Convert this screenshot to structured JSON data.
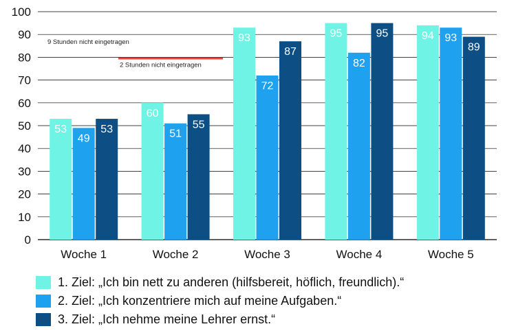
{
  "chart_data": {
    "type": "bar",
    "categories": [
      "Woche 1",
      "Woche 2",
      "Woche 3",
      "Woche 4",
      "Woche 5"
    ],
    "series": [
      {
        "name": "1. Ziel: „Ich bin nett zu anderen (hilfsbereit, höflich, freundlich).“",
        "values": [
          53,
          60,
          93,
          95,
          94
        ],
        "color": "#6ff3e4"
      },
      {
        "name": "2. Ziel: „Ich konzentriere mich auf meine Aufgaben.“",
        "values": [
          49,
          51,
          72,
          82,
          93
        ],
        "color": "#1ea2f0"
      },
      {
        "name": "3. Ziel: „Ich nehme meine Lehrer ernst.“",
        "values": [
          53,
          55,
          87,
          95,
          89
        ],
        "color": "#0d4f85"
      }
    ],
    "ylim": [
      0,
      100
    ],
    "yticks": [
      0,
      10,
      20,
      30,
      40,
      50,
      60,
      70,
      80,
      90,
      100
    ],
    "grid": true,
    "legend": "bottom",
    "annotations": [
      {
        "text": "9 Stunden nicht eingetragen",
        "value": 87
      },
      {
        "text": "2 Stunden nicht eingetragen",
        "value": 79
      },
      {
        "marker_value": 79.5,
        "color": "#e8453c"
      }
    ],
    "label_color": "#ffffff"
  }
}
